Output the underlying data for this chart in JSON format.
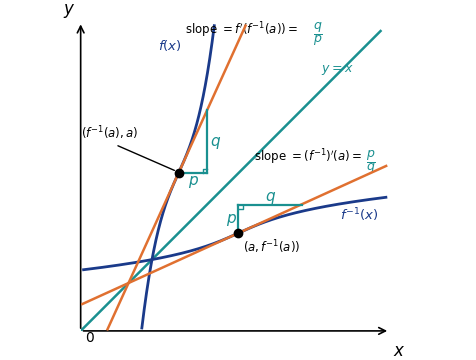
{
  "figsize": [
    4.77,
    3.6
  ],
  "dpi": 100,
  "bg_color": "#ffffff",
  "blue_color": "#1a3a8a",
  "teal_color": "#1a9090",
  "orange_color": "#e07030",
  "xlim": [
    0,
    10
  ],
  "ylim": [
    0,
    10
  ],
  "point1": [
    3.1,
    5.0
  ],
  "point2": [
    5.0,
    3.1
  ],
  "slope_steep": 2.2,
  "slope_shallow": 0.4545,
  "p_val": 0.9,
  "q_val": 2.0,
  "p2_val": 0.9,
  "q2_val": 2.0
}
